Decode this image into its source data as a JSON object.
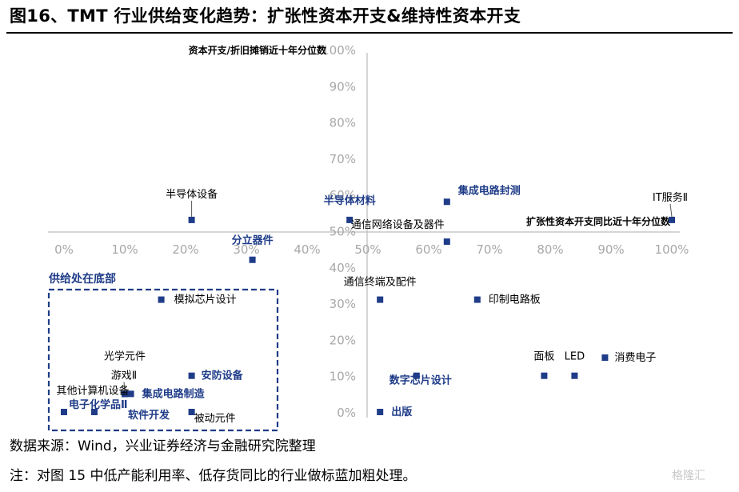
{
  "figure": {
    "title": "图16、TMT 行业供给变化趋势：扩张性资本开支&维持性资本开支",
    "source": "数据来源：Wind，兴业证券经济与金融研究院整理",
    "note": "注：对图 15 中低产能利用率、低存货同比的行业做标蓝加粗处理。",
    "watermark": "格隆汇"
  },
  "chart_data": {
    "type": "scatter",
    "xlabel": "扩张性资本开支同比近十年分位数",
    "ylabel": "资本开支/折旧摊销近十年分位数",
    "xlim": [
      0,
      100
    ],
    "ylim": [
      0,
      100
    ],
    "x_ticks": [
      "0%",
      "10%",
      "20%",
      "30%",
      "40%",
      "50%",
      "60%",
      "70%",
      "80%",
      "90%",
      "100%"
    ],
    "y_ticks": [
      "0%",
      "10%",
      "20%",
      "30%",
      "40%",
      "50%",
      "60%",
      "70%",
      "80%",
      "90%",
      "100%"
    ],
    "point_color": "#1f3c88",
    "highlight_color": "#1f3c88",
    "normal_label_color": "#000000",
    "grid": false,
    "points": [
      {
        "label": "半导体设备",
        "x": 21,
        "y": 53,
        "highlight": false
      },
      {
        "label": "半导体材料",
        "x": 47,
        "y": 53,
        "highlight": true
      },
      {
        "label": "集成电路封测",
        "x": 63,
        "y": 58,
        "highlight": true
      },
      {
        "label": "IT服务Ⅱ",
        "x": 100,
        "y": 53,
        "highlight": false
      },
      {
        "label": "通信网络设备及器件",
        "x": 63,
        "y": 47,
        "highlight": false
      },
      {
        "label": "分立器件",
        "x": 31,
        "y": 42,
        "highlight": true
      },
      {
        "label": "模拟芯片设计",
        "x": 16,
        "y": 31,
        "highlight": false
      },
      {
        "label": "通信终端及配件",
        "x": 52,
        "y": 31,
        "highlight": false
      },
      {
        "label": "印制电路板",
        "x": 68,
        "y": 31,
        "highlight": false
      },
      {
        "label": "面板",
        "x": 79,
        "y": 10,
        "highlight": false
      },
      {
        "label": "LED",
        "x": 84,
        "y": 10,
        "highlight": false
      },
      {
        "label": "消费电子",
        "x": 89,
        "y": 15,
        "highlight": false
      },
      {
        "label": "数字芯片设计",
        "x": 58,
        "y": 10,
        "highlight": true
      },
      {
        "label": "出版",
        "x": 52,
        "y": 0,
        "highlight": true
      },
      {
        "label": "安防设备",
        "x": 21,
        "y": 10,
        "highlight": true
      },
      {
        "label": "光学元件",
        "x": 10,
        "y": 5,
        "highlight": false
      },
      {
        "label": "游戏Ⅱ",
        "x": 10,
        "y": 5,
        "highlight": false
      },
      {
        "label": "集成电路制造",
        "x": 11,
        "y": 5,
        "highlight": true
      },
      {
        "label": "其他计算机设备",
        "x": 10,
        "y": 5,
        "highlight": false
      },
      {
        "label": "电子化学品Ⅱ",
        "x": 0,
        "y": 0,
        "highlight": true
      },
      {
        "label": "软件开发",
        "x": 5,
        "y": 0,
        "highlight": true
      },
      {
        "label": "被动元件",
        "x": 21,
        "y": 0,
        "highlight": false
      }
    ],
    "annotation_box": {
      "label": "供给处在底部",
      "color": "#1f3c88"
    }
  }
}
